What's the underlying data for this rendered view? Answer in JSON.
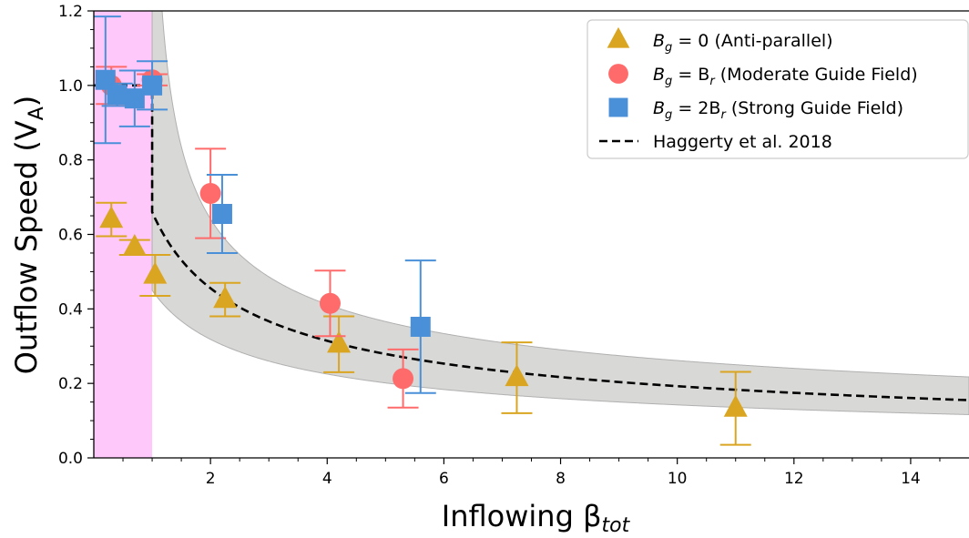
{
  "chart_data": {
    "type": "scatter",
    "xlabel": "Inflowing β",
    "xlabel_sub": "tot",
    "ylabel": "Outflow Speed (V",
    "ylabel_sub": "A",
    "ylabel_close": ")",
    "xlim": [
      0,
      15
    ],
    "ylim": [
      0,
      1.2
    ],
    "xticks": [
      2,
      4,
      6,
      8,
      10,
      12,
      14
    ],
    "yticks": [
      0.0,
      0.2,
      0.4,
      0.6,
      0.8,
      1.0,
      1.2
    ],
    "ytick_labels": [
      "0.0",
      "0.2",
      "0.4",
      "0.6",
      "0.8",
      "1.0",
      "1.2"
    ],
    "grid": false,
    "legend_position": "top-right",
    "shaded_region": {
      "x_from": 0,
      "x_to": 1.0,
      "color": "#ffc8fa"
    },
    "uncertainty_band": {
      "color": "#d8d8d6",
      "edge_color": "#b0b0b0"
    },
    "series": [
      {
        "name": "Bg = 0 (Anti-parallel)",
        "legend_parts": [
          "B",
          "g",
          " = 0 (Anti-parallel)",
          "",
          ""
        ],
        "marker": "triangle",
        "color": "#daa520",
        "points": [
          {
            "x": 0.3,
            "y": 0.64,
            "err": 0.045
          },
          {
            "x": 0.7,
            "y": 0.565,
            "err": 0.02
          },
          {
            "x": 1.05,
            "y": 0.49,
            "err": 0.055
          },
          {
            "x": 2.25,
            "y": 0.425,
            "err": 0.045
          },
          {
            "x": 4.2,
            "y": 0.305,
            "err": 0.075
          },
          {
            "x": 7.25,
            "y": 0.215,
            "err": 0.095
          },
          {
            "x": 11.0,
            "y": 0.133,
            "err": 0.098
          }
        ]
      },
      {
        "name": "Bg = Br (Moderate Guide Field)",
        "legend_parts": [
          "B",
          "g",
          " = B",
          "r",
          " (Moderate Guide Field)"
        ],
        "marker": "circle",
        "color": "#ff6b6b",
        "points": [
          {
            "x": 0.3,
            "y": 1.0,
            "err": 0.05
          },
          {
            "x": 1.0,
            "y": 1.015,
            "err": 0.015
          },
          {
            "x": 2.0,
            "y": 0.71,
            "err": 0.12
          },
          {
            "x": 4.05,
            "y": 0.415,
            "err": 0.088
          },
          {
            "x": 5.3,
            "y": 0.213,
            "err": 0.078
          }
        ]
      },
      {
        "name": "Bg = 2Br (Strong Guide Field)",
        "legend_parts": [
          "B",
          "g",
          " = 2B",
          "r",
          " (Strong Guide Field)"
        ],
        "marker": "square",
        "color": "#4a90d9",
        "points": [
          {
            "x": 0.2,
            "y": 1.015,
            "err": 0.17
          },
          {
            "x": 0.4,
            "y": 0.975,
            "err": 0.03
          },
          {
            "x": 0.7,
            "y": 0.965,
            "err": 0.075
          },
          {
            "x": 1.0,
            "y": 1.0,
            "err": 0.065
          },
          {
            "x": 2.2,
            "y": 0.655,
            "err": 0.105
          },
          {
            "x": 5.6,
            "y": 0.352,
            "err": 0.178
          }
        ]
      }
    ],
    "reference_line": {
      "name": "Haggerty et al. 2018",
      "style": "dashed",
      "color": "#000000"
    }
  }
}
